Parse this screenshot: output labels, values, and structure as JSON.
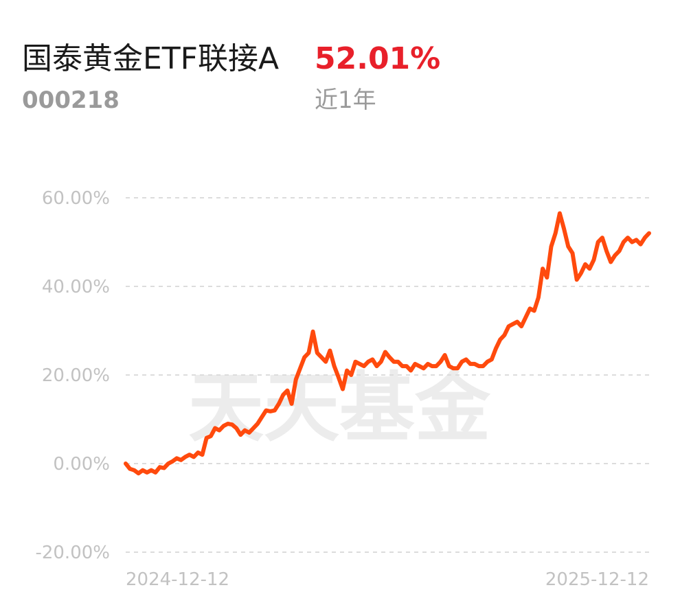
{
  "header": {
    "fund_name": "国泰黄金ETF联接A",
    "return_value": "52.01%",
    "fund_code": "000218",
    "period_label": "近1年"
  },
  "colors": {
    "line": "#ff4a0d",
    "positive": "#e8202a",
    "grid": "#dcdcdc",
    "tick": "#c2c2c2",
    "watermark": "#ececec"
  },
  "watermark": "天天基金",
  "chart_data": {
    "type": "line",
    "xlabel": "",
    "ylabel": "",
    "x_ticks": [
      "2024-12-12",
      "2025-12-12"
    ],
    "y_ticks": [
      "60.00%",
      "40.00%",
      "20.00%",
      "0.00%",
      "-20.00%"
    ],
    "y_tick_values": [
      60,
      40,
      20,
      0,
      -20
    ],
    "ylim": [
      -20,
      60
    ],
    "grid": "horizontal-dashed",
    "series": [
      {
        "values": [
          0,
          -1.2,
          -1.5,
          -2.2,
          -1.5,
          -2.0,
          -1.5,
          -2.0,
          -0.8,
          -1.0,
          0.0,
          0.5,
          1.2,
          0.8,
          1.5,
          2.0,
          1.5,
          2.5,
          2.0,
          5.8,
          6.2,
          8.0,
          7.5,
          8.5,
          9.0,
          8.8,
          8.0,
          6.5,
          7.5,
          7.0,
          8.0,
          9.0,
          10.5,
          12.0,
          11.8,
          12.0,
          13.5,
          15.5,
          16.5,
          13.5,
          19.0,
          21.5,
          24.0,
          25.0,
          29.8,
          25.0,
          24.0,
          23.0,
          25.5,
          22.0,
          19.5,
          16.8,
          21.0,
          20.0,
          23.0,
          22.5,
          22.0,
          23.0,
          23.5,
          22.0,
          23.0,
          25.2,
          24.0,
          23.0,
          23.0,
          22.0,
          22.0,
          21.0,
          22.5,
          22.0,
          21.5,
          22.5,
          22.0,
          22.0,
          23.0,
          24.5,
          22.0,
          21.5,
          21.5,
          23.0,
          23.5,
          22.5,
          22.5,
          22.0,
          22.0,
          23.0,
          23.5,
          26.0,
          28.0,
          29.0,
          31.0,
          31.5,
          32.0,
          31.0,
          33.0,
          35.0,
          34.5,
          37.5,
          44.0,
          42.0,
          49.0,
          52.0,
          56.5,
          53.0,
          49.0,
          47.5,
          41.5,
          43.0,
          45.0,
          44.0,
          46.0,
          50.0,
          51.0,
          48.0,
          45.5,
          47.0,
          48.0,
          50.0,
          51.0,
          50.0,
          50.5,
          49.5,
          51.0,
          52.0
        ]
      }
    ]
  }
}
